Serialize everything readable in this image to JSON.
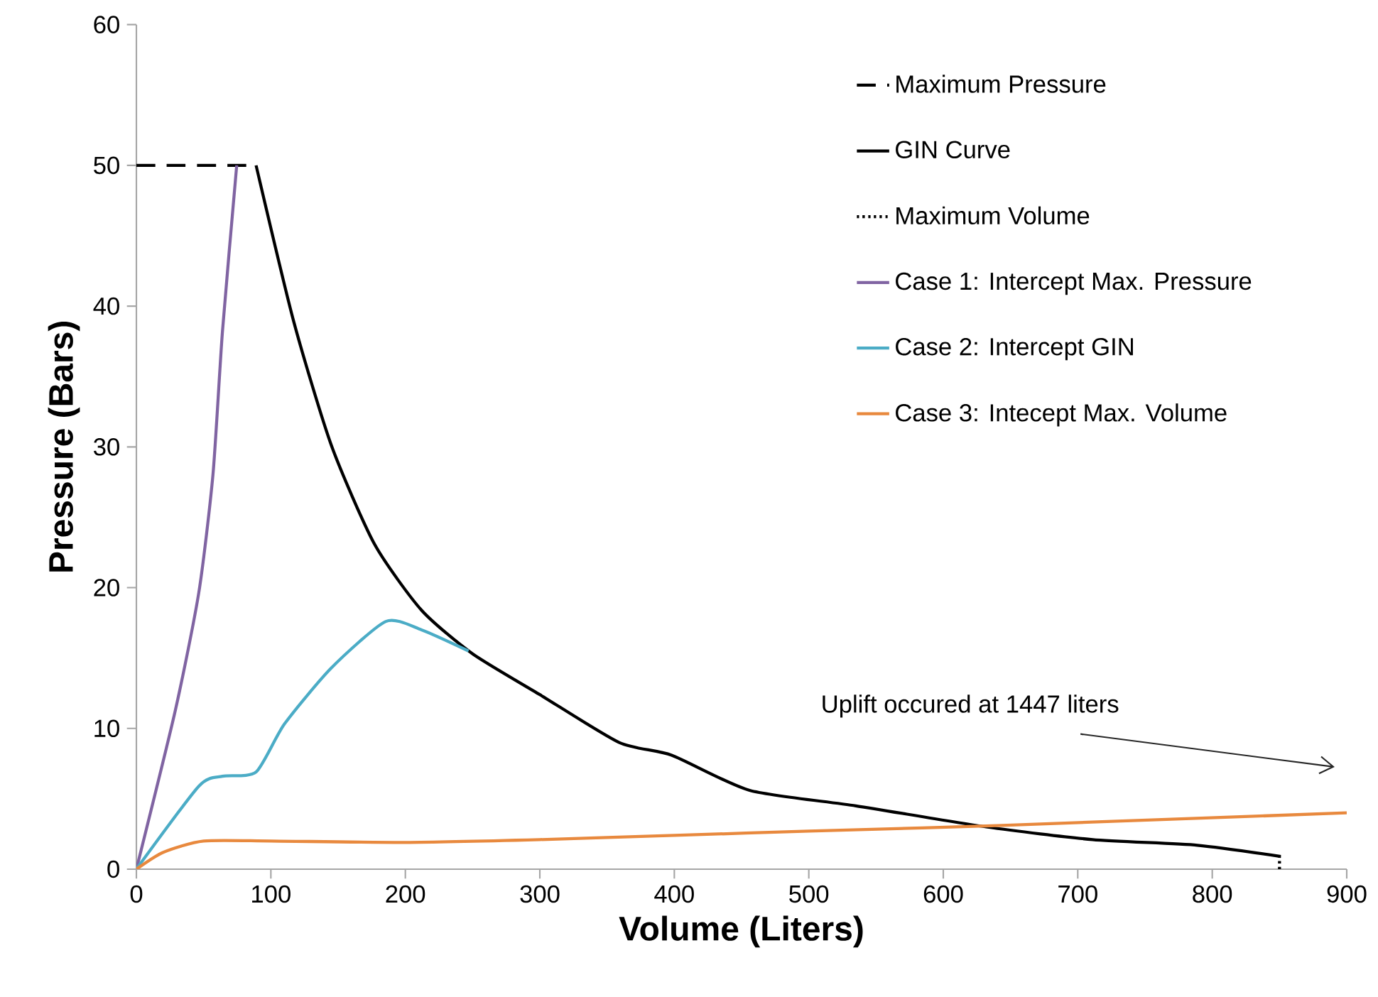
{
  "chart_data": {
    "type": "line",
    "xlabel": "Volume (Liters)",
    "ylabel": "Pressure (Bars)",
    "xlim": [
      0,
      900
    ],
    "xticks": [
      0,
      100,
      200,
      300,
      400,
      500,
      600,
      700,
      800,
      900
    ],
    "ylim": [
      0,
      60
    ],
    "yticks": [
      0,
      10,
      20,
      30,
      40,
      50,
      60
    ],
    "grid": false,
    "legend": "top right",
    "marker": "none",
    "annotations": [
      "Uplift occured at 1447 liters"
    ],
    "series": [
      {
        "name": "Maximum Pressure",
        "color": "#000000",
        "line_style": "dashed",
        "x": [
          0,
          90
        ],
        "values": [
          50,
          50
        ]
      },
      {
        "name": "GIN Curve",
        "color": "#000000",
        "line_style": "solid",
        "x": [
          89,
          117,
          145,
          177,
          212,
          250,
          300,
          359,
          398,
          456,
          535,
          632,
          711,
          789,
          851
        ],
        "values": [
          50,
          38.9,
          30.1,
          23.1,
          18.4,
          15.3,
          12.4,
          9.0,
          8.1,
          5.6,
          4.5,
          3.0,
          2.1,
          1.7,
          0.9
        ]
      },
      {
        "name": "Maximum Volume",
        "color": "#000000",
        "line_style": "dotted",
        "x": [
          850,
          850
        ],
        "values": [
          0,
          0.9
        ]
      },
      {
        "name": "Case 1: Intercept Max. Pressure",
        "color": "#8064a2",
        "line_style": "solid",
        "x": [
          0,
          29,
          46.5,
          57,
          64,
          74.6
        ],
        "values": [
          0,
          11.3,
          19.7,
          28.1,
          38.2,
          50
        ]
      },
      {
        "name": "Case 2: Intercept GIN",
        "color": "#4bacc6",
        "line_style": "solid",
        "x": [
          0,
          46.5,
          64,
          89,
          110,
          145,
          185.5,
          212,
          247
        ],
        "values": [
          0,
          5.9,
          6.6,
          6.9,
          10.3,
          14.3,
          17.6,
          17.0,
          15.5
        ]
      },
      {
        "name": "Case 3: Intecept Max. Volume",
        "color": "#e8893e",
        "line_style": "solid",
        "x": [
          0,
          20,
          50,
          100,
          200,
          300,
          400,
          500,
          640,
          900
        ],
        "values": [
          0,
          1.2,
          2,
          2,
          1.9,
          2.1,
          2.4,
          2.7,
          3.1,
          4
        ]
      }
    ]
  }
}
